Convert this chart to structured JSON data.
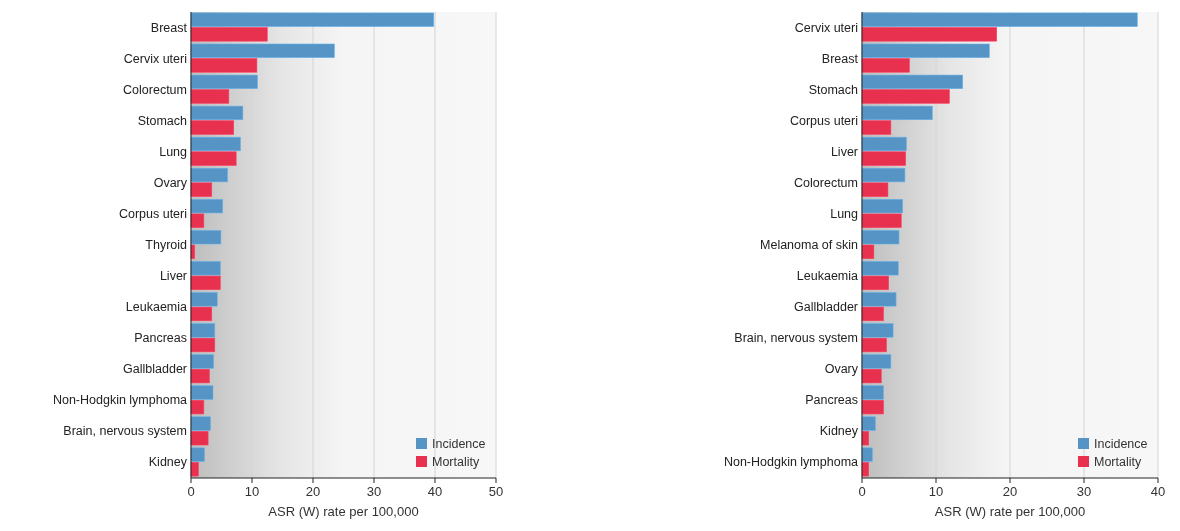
{
  "chart_data": [
    {
      "type": "bar",
      "orientation": "horizontal",
      "xlabel": "ASR (W) rate per 100,000",
      "categories": [
        "Breast",
        "Cervix uteri",
        "Colorectum",
        "Stomach",
        "Lung",
        "Ovary",
        "Corpus uteri",
        "Thyroid",
        "Liver",
        "Leukaemia",
        "Pancreas",
        "Gallbladder",
        "Non-Hodgkin lymphoma",
        "Brain, nervous system",
        "Kidney"
      ],
      "series": [
        {
          "name": "Incidence",
          "color": "#5594c4",
          "values": [
            39.8,
            23.5,
            10.9,
            8.5,
            8.1,
            6.0,
            5.2,
            4.9,
            4.8,
            4.3,
            3.9,
            3.7,
            3.6,
            3.2,
            2.2
          ]
        },
        {
          "name": "Mortality",
          "color": "#e8304f",
          "values": [
            12.5,
            10.8,
            6.2,
            7.0,
            7.4,
            3.4,
            2.1,
            0.6,
            4.8,
            3.4,
            3.9,
            3.0,
            2.1,
            2.8,
            1.2
          ]
        }
      ],
      "xlim": [
        0,
        50
      ],
      "xticks": [
        0,
        10,
        20,
        30,
        40,
        50
      ],
      "grid": "x",
      "legend": "bottom right"
    },
    {
      "type": "bar",
      "orientation": "horizontal",
      "xlabel": "ASR (W) rate per 100,000",
      "categories": [
        "Cervix uteri",
        "Breast",
        "Stomach",
        "Corpus uteri",
        "Liver",
        "Colorectum",
        "Lung",
        "Melanoma of skin",
        "Leukaemia",
        "Gallbladder",
        "Brain, nervous system",
        "Ovary",
        "Pancreas",
        "Kidney",
        "Non-Hodgkin lymphoma"
      ],
      "series": [
        {
          "name": "Incidence",
          "color": "#5594c4",
          "values": [
            37.2,
            17.2,
            13.6,
            9.5,
            6.0,
            5.8,
            5.5,
            5.0,
            4.9,
            4.6,
            4.2,
            3.9,
            2.9,
            1.8,
            1.4
          ]
        },
        {
          "name": "Mortality",
          "color": "#e8304f",
          "values": [
            18.2,
            6.4,
            11.8,
            3.9,
            5.9,
            3.5,
            5.3,
            1.6,
            3.6,
            2.9,
            3.3,
            2.6,
            2.9,
            0.9,
            0.9
          ]
        }
      ],
      "xlim": [
        0,
        40
      ],
      "xticks": [
        0,
        10,
        20,
        30,
        40
      ],
      "grid": "x",
      "legend": "bottom right"
    }
  ]
}
